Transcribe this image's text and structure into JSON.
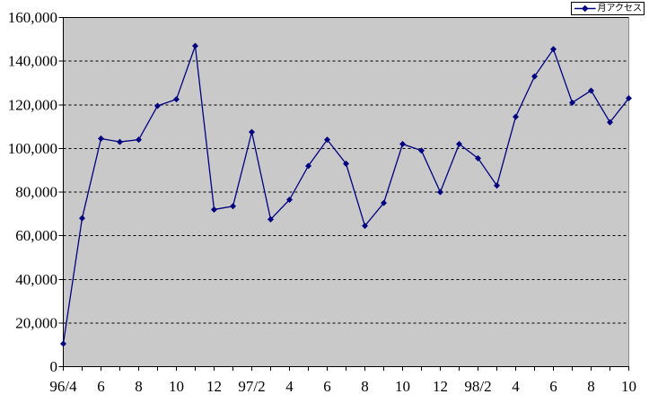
{
  "page": {
    "background": "#ffffff"
  },
  "legend": {
    "label": "月アクセス"
  },
  "chart_data": {
    "type": "line",
    "title": "",
    "xlabel": "",
    "ylabel": "",
    "ylim": [
      0,
      160000
    ],
    "y_tick_step": 20000,
    "y_tick_labels": [
      "0",
      "20,000",
      "40,000",
      "60,000",
      "80,000",
      "100,000",
      "120,000",
      "140,000",
      "160,000"
    ],
    "categories": [
      "96/4",
      "96/5",
      "96/6",
      "96/7",
      "96/8",
      "96/9",
      "96/10",
      "96/11",
      "96/12",
      "97/1",
      "97/2",
      "97/3",
      "97/4",
      "97/5",
      "97/6",
      "97/7",
      "97/8",
      "97/9",
      "97/10",
      "97/11",
      "97/12",
      "98/1",
      "98/2",
      "98/3",
      "98/4",
      "98/5",
      "98/6",
      "98/7",
      "98/8",
      "98/9",
      "98/10"
    ],
    "x_tick_labels": [
      "96/4",
      "6",
      "8",
      "10",
      "12",
      "97/2",
      "4",
      "6",
      "8",
      "10",
      "12",
      "98/2",
      "4",
      "6",
      "8",
      "10"
    ],
    "x_label_every": 2,
    "series": [
      {
        "name": "月アクセス",
        "color": "#000080",
        "marker": "diamond",
        "values": [
          10500,
          68000,
          104500,
          103000,
          104000,
          119500,
          122500,
          147000,
          72000,
          73500,
          107500,
          67500,
          76500,
          92000,
          104000,
          93000,
          64500,
          75000,
          102000,
          99000,
          80000,
          102000,
          95500,
          83000,
          114500,
          133000,
          145500,
          121000,
          126500,
          112000,
          123000
        ]
      }
    ],
    "grid": {
      "horizontal": true,
      "style": "dashed",
      "color": "#000000"
    },
    "plot_background": "#c9c9c9",
    "axis_color": "#000000",
    "plot_border_color": "#8c8c8c",
    "legend_position": "top-right"
  }
}
